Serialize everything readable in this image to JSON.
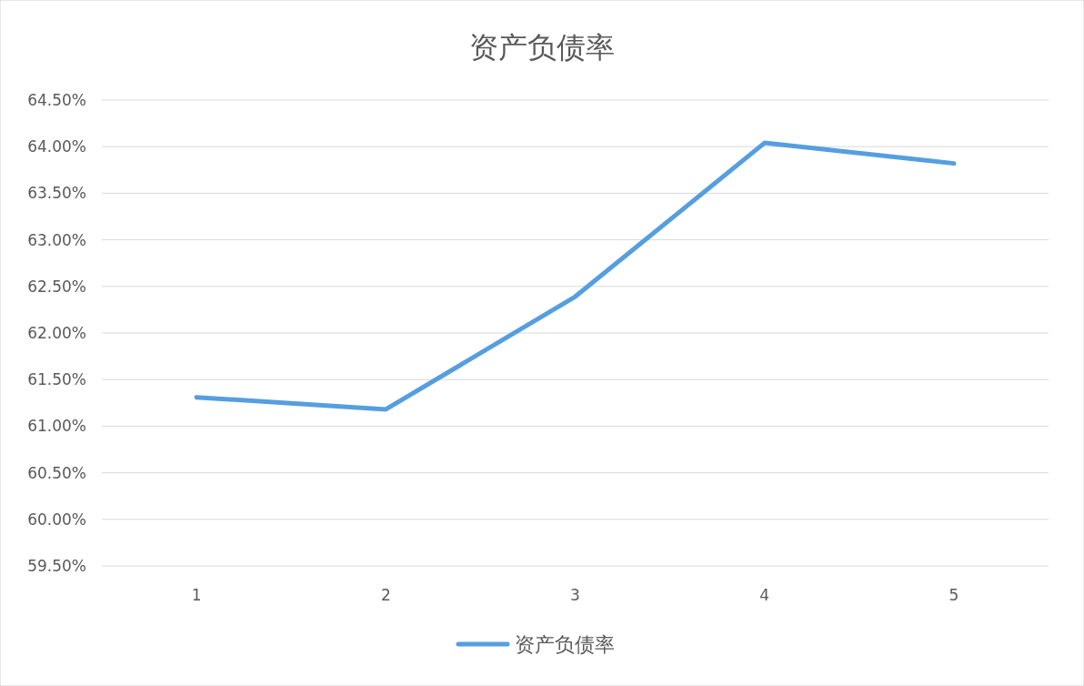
{
  "chart_data": {
    "type": "line",
    "title": "资产负债率",
    "categories": [
      "1",
      "2",
      "3",
      "4",
      "5"
    ],
    "series": [
      {
        "name": "资产负债率",
        "color": "#559ee0",
        "values": [
          61.31,
          61.18,
          62.39,
          64.04,
          63.82
        ]
      }
    ],
    "ylim": [
      59.5,
      64.5
    ],
    "yticks": [
      {
        "value": 59.5,
        "label": "59.50%"
      },
      {
        "value": 60,
        "label": "60.00%"
      },
      {
        "value": 60.5,
        "label": "60.50%"
      },
      {
        "value": 61,
        "label": "61.00%"
      },
      {
        "value": 61.5,
        "label": "61.50%"
      },
      {
        "value": 62,
        "label": "62.00%"
      },
      {
        "value": 62.5,
        "label": "62.50%"
      },
      {
        "value": 63,
        "label": "63.00%"
      },
      {
        "value": 63.5,
        "label": "63.50%"
      },
      {
        "value": 64,
        "label": "64.00%"
      },
      {
        "value": 64.5,
        "label": "64.50%"
      }
    ],
    "grid": "y",
    "legend": "bottom",
    "marker": "none",
    "line_style": "solid"
  }
}
